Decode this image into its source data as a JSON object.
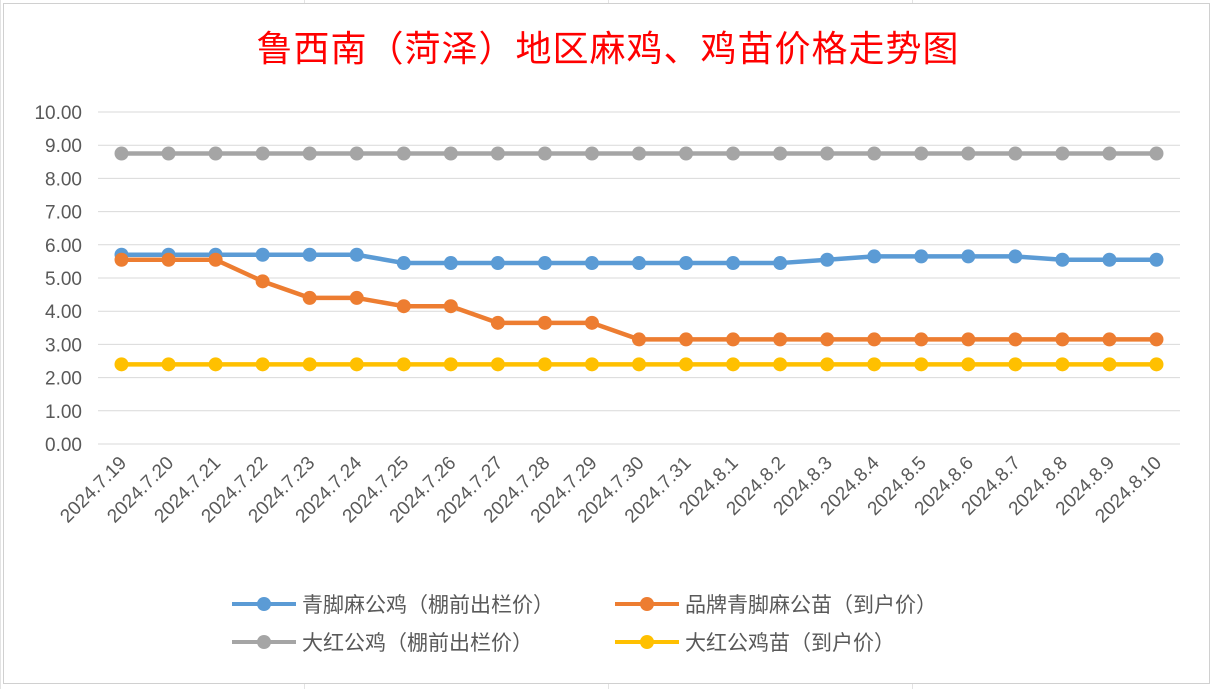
{
  "chart_data": {
    "type": "line",
    "title": "鲁西南（菏泽）地区麻鸡、鸡苗价格走势图",
    "categories": [
      "2024.7.19",
      "2024.7.20",
      "2024.7.21",
      "2024.7.22",
      "2024.7.23",
      "2024.7.24",
      "2024.7.25",
      "2024.7.26",
      "2024.7.27",
      "2024.7.28",
      "2024.7.29",
      "2024.7.30",
      "2024.7.31",
      "2024.8.1",
      "2024.8.2",
      "2024.8.3",
      "2024.8.4",
      "2024.8.5",
      "2024.8.6",
      "2024.8.7",
      "2024.8.8",
      "2024.8.9",
      "2024.8.10"
    ],
    "yticks": [
      "0.00",
      "1.00",
      "2.00",
      "3.00",
      "4.00",
      "5.00",
      "6.00",
      "7.00",
      "8.00",
      "9.00",
      "10.00"
    ],
    "ylim": [
      0,
      10
    ],
    "grid": true,
    "legend_position": "bottom",
    "series": [
      {
        "name": "青脚麻公鸡（棚前出栏价）",
        "color": "#5b9bd5",
        "values": [
          5.7,
          5.7,
          5.7,
          5.7,
          5.7,
          5.7,
          5.45,
          5.45,
          5.45,
          5.45,
          5.45,
          5.45,
          5.45,
          5.45,
          5.45,
          5.55,
          5.65,
          5.65,
          5.65,
          5.65,
          5.55,
          5.55,
          5.55
        ]
      },
      {
        "name": "品牌青脚麻公苗（到户价）",
        "color": "#ed7d31",
        "values": [
          5.55,
          5.55,
          5.55,
          4.9,
          4.4,
          4.4,
          4.15,
          4.15,
          3.65,
          3.65,
          3.65,
          3.15,
          3.15,
          3.15,
          3.15,
          3.15,
          3.15,
          3.15,
          3.15,
          3.15,
          3.15,
          3.15,
          3.15
        ]
      },
      {
        "name": "大红公鸡（棚前出栏价）",
        "color": "#a5a5a5",
        "values": [
          8.75,
          8.75,
          8.75,
          8.75,
          8.75,
          8.75,
          8.75,
          8.75,
          8.75,
          8.75,
          8.75,
          8.75,
          8.75,
          8.75,
          8.75,
          8.75,
          8.75,
          8.75,
          8.75,
          8.75,
          8.75,
          8.75,
          8.75
        ]
      },
      {
        "name": "大红公鸡苗（到户价）",
        "color": "#ffc000",
        "values": [
          2.4,
          2.4,
          2.4,
          2.4,
          2.4,
          2.4,
          2.4,
          2.4,
          2.4,
          2.4,
          2.4,
          2.4,
          2.4,
          2.4,
          2.4,
          2.4,
          2.4,
          2.4,
          2.4,
          2.4,
          2.4,
          2.4,
          2.4
        ]
      }
    ]
  }
}
